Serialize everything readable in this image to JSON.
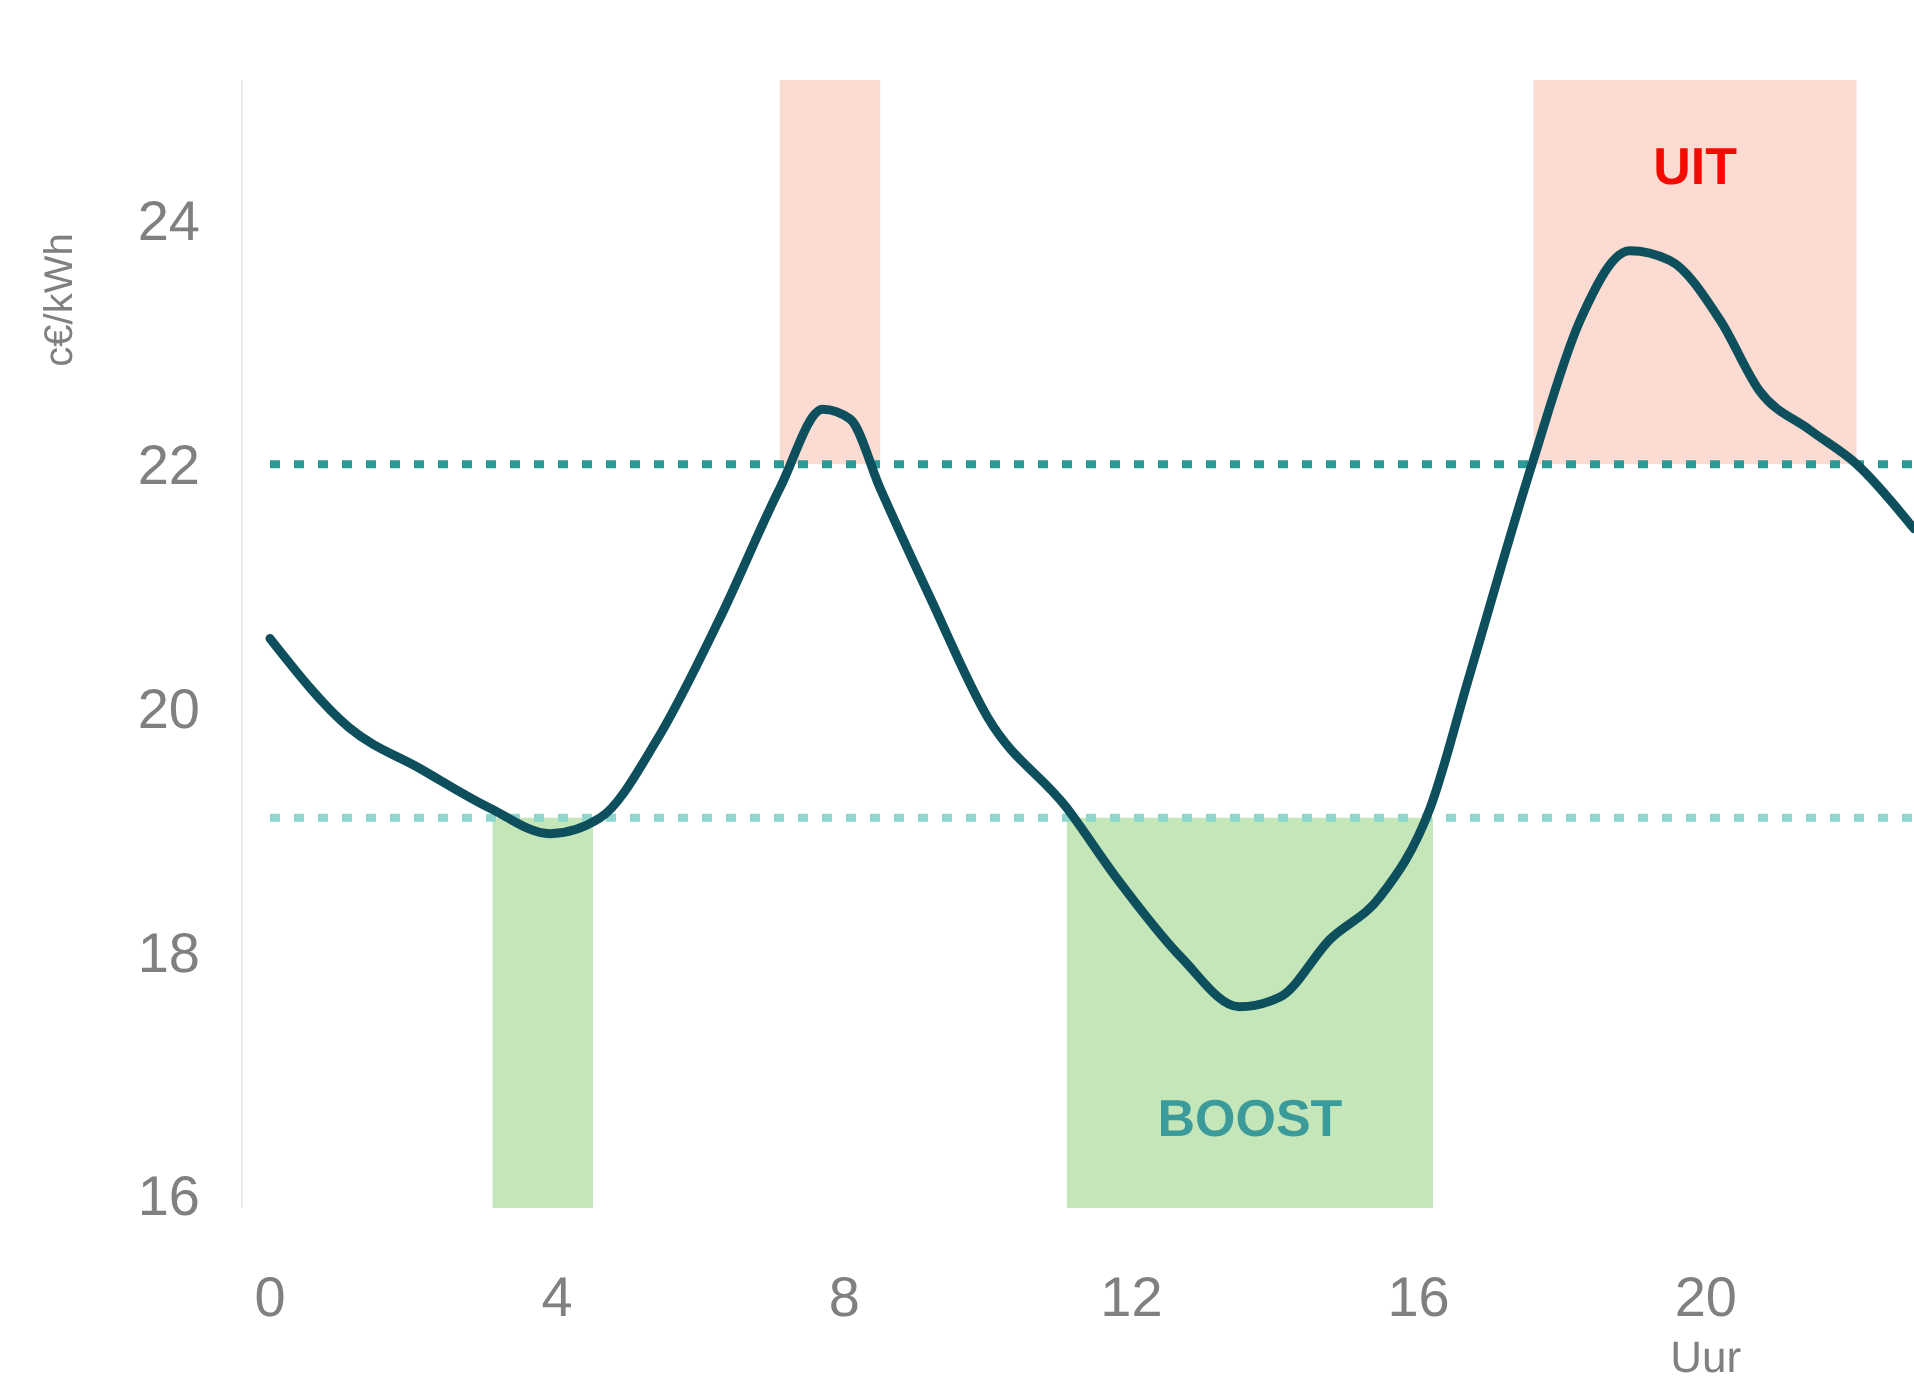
{
  "chart_data": {
    "type": "line",
    "xlabel": "Uur",
    "ylabel": "c€/kWh",
    "xlim": [
      0,
      22.9
    ],
    "ylim": [
      15.9,
      25.15
    ],
    "xticks": [
      0,
      4,
      8,
      12,
      16,
      20
    ],
    "yticks": [
      16,
      18,
      20,
      22,
      24
    ],
    "series": [
      {
        "color": "#0d4f5c",
        "x": [
          0,
          1.1,
          2.1,
          3.06,
          3.9,
          4.6,
          5.4,
          6.27,
          7.1,
          7.7,
          8.08,
          8.5,
          9.2,
          10.0,
          11.1,
          11.8,
          12.7,
          13.5,
          14.07,
          14.76,
          15.46,
          16.16,
          16.7,
          17.58,
          18.25,
          18.94,
          19.5,
          20.2,
          20.75,
          21.45,
          22.1,
          22.9
        ],
        "values": [
          20.57,
          19.84,
          19.5,
          19.18,
          18.97,
          19.1,
          19.75,
          20.74,
          21.8,
          22.45,
          22.37,
          21.8,
          20.9,
          19.92,
          19.18,
          18.6,
          17.95,
          17.55,
          17.63,
          18.1,
          18.45,
          19.18,
          20.25,
          22,
          23.18,
          23.75,
          23.67,
          23.18,
          22.6,
          22.28,
          22.0,
          21.47
        ]
      }
    ],
    "ref_lines": [
      {
        "axis": "y",
        "value": 22,
        "color": "#2a9a96",
        "line_style": "dotted"
      },
      {
        "axis": "y",
        "value": 19.1,
        "color": "#8fd6cf",
        "line_style": "dotted"
      }
    ],
    "bands": [
      {
        "axis": "x",
        "from": 3.1,
        "to": 4.5,
        "color": "#c5e6b9"
      },
      {
        "axis": "x",
        "from": 7.1,
        "to": 8.5,
        "color": "#fcdcd2"
      },
      {
        "axis": "x",
        "from": 11.1,
        "to": 16.2,
        "color": "#c5e6b9",
        "label": "BOOST"
      },
      {
        "axis": "x",
        "from": 17.6,
        "to": 22.1,
        "color": "#fcdcd2",
        "label": "UIT"
      }
    ],
    "grid": false,
    "marker": "none",
    "line_style": "solid"
  }
}
